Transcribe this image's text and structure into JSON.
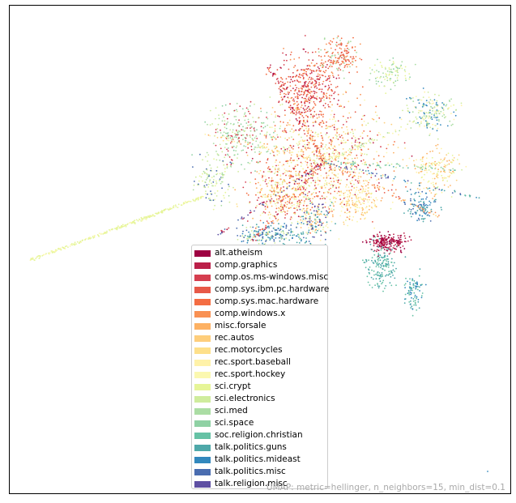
{
  "chart_data": {
    "type": "scatter",
    "title": "",
    "xlabel": "",
    "ylabel": "",
    "grid": false,
    "legend_position": "bottom-center",
    "annotation": "UMAP: metric=hellinger, n_neighbors=15, min_dist=0.1",
    "series": [
      {
        "name": "alt.atheism",
        "color": "#9e0142"
      },
      {
        "name": "comp.graphics",
        "color": "#bb2049"
      },
      {
        "name": "comp.os.ms-windows.misc",
        "color": "#d53e4f"
      },
      {
        "name": "comp.sys.ibm.pc.hardware",
        "color": "#e75948"
      },
      {
        "name": "comp.sys.mac.hardware",
        "color": "#f46d43"
      },
      {
        "name": "comp.windows.x",
        "color": "#f99153"
      },
      {
        "name": "misc.forsale",
        "color": "#fdb163"
      },
      {
        "name": "rec.autos",
        "color": "#fece7c"
      },
      {
        "name": "rec.motorcycles",
        "color": "#fee08b"
      },
      {
        "name": "rec.sport.baseball",
        "color": "#fff2a9"
      },
      {
        "name": "rec.sport.hockey",
        "color": "#fbf8b0"
      },
      {
        "name": "sci.crypt",
        "color": "#e6f598"
      },
      {
        "name": "sci.electronics",
        "color": "#cfec9d"
      },
      {
        "name": "sci.med",
        "color": "#abdda4"
      },
      {
        "name": "sci.space",
        "color": "#8fd1a4"
      },
      {
        "name": "soc.religion.christian",
        "color": "#66c2a5"
      },
      {
        "name": "talk.politics.guns",
        "color": "#4ea8a9"
      },
      {
        "name": "talk.politics.mideast",
        "color": "#3288bd"
      },
      {
        "name": "talk.politics.misc",
        "color": "#4a6db0"
      },
      {
        "name": "talk.religion.misc",
        "color": "#5e4fa2"
      }
    ]
  }
}
